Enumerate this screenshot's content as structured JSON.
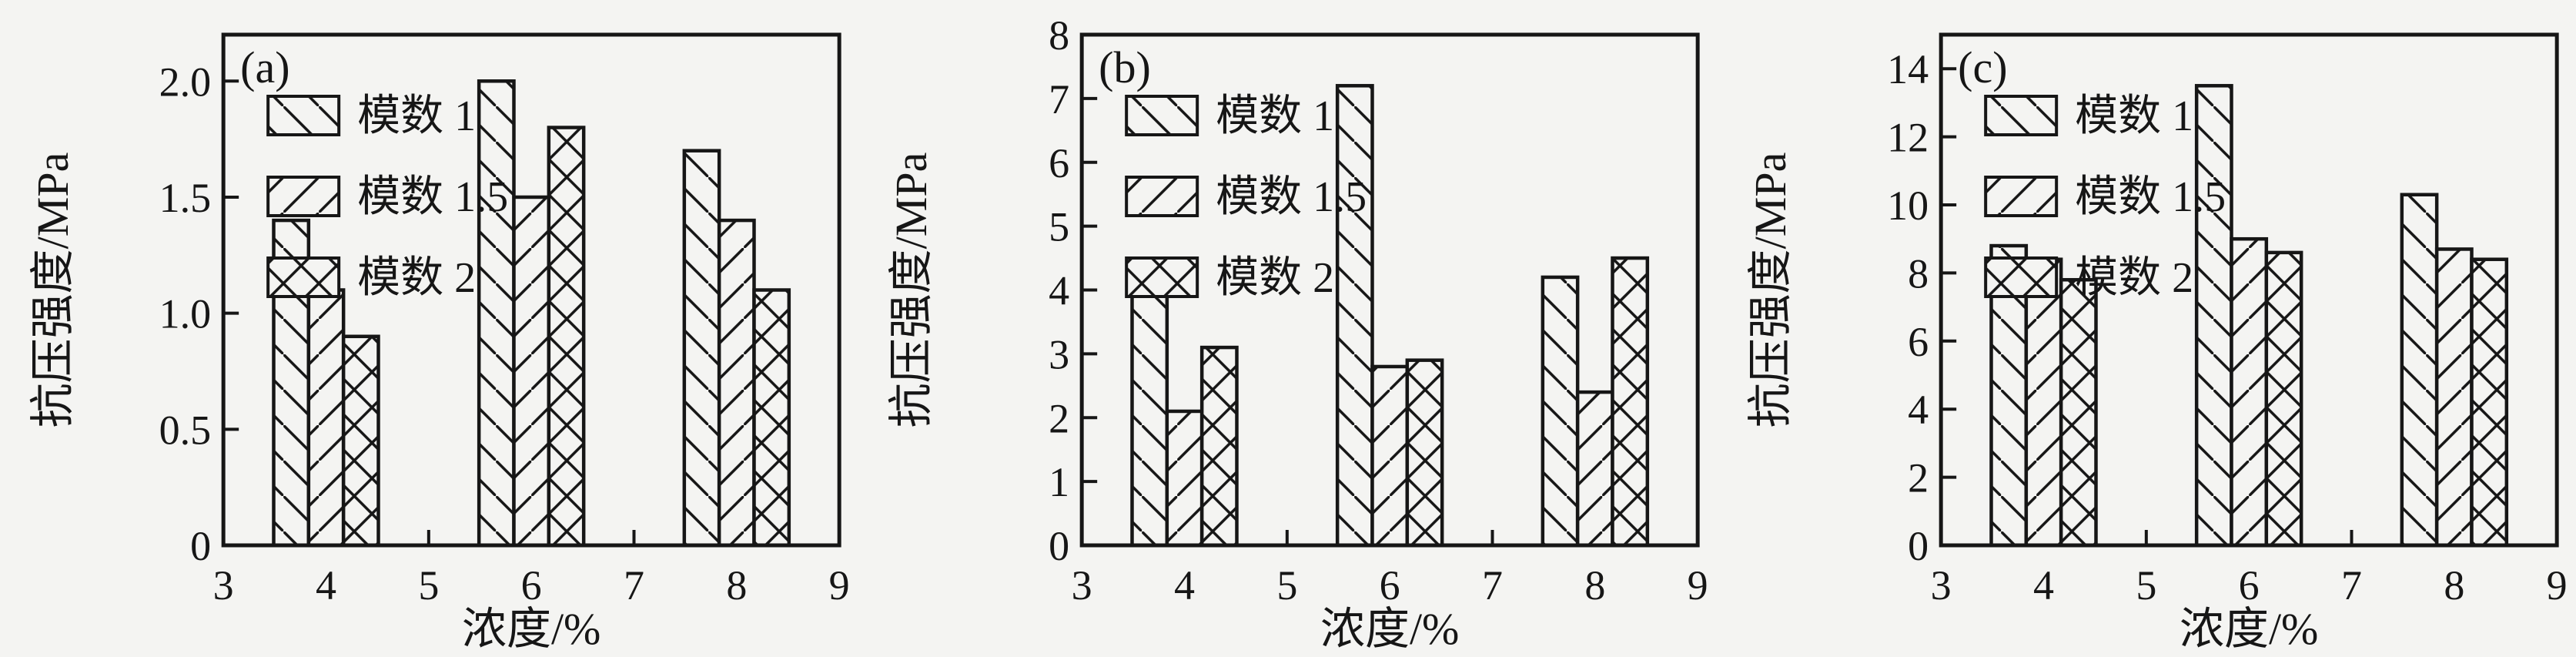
{
  "figure": {
    "background": "#f4f4f2",
    "line_color": "#161616",
    "text_color": "#161616",
    "xlabel": "浓度/%",
    "ylabel": "抗压强度/MPa",
    "legend_labels": [
      "模数 1",
      "模数 1.5",
      "模数 2"
    ],
    "hatch_styles": [
      "diag-down",
      "diag-up",
      "cross"
    ]
  },
  "chart_data": [
    {
      "type": "bar",
      "panel_label": "(a)",
      "xlabel": "浓度/%",
      "ylabel": "抗压强度/MPa",
      "categories": [
        4,
        6,
        8
      ],
      "series": [
        {
          "name": "模数 1",
          "hatch": "diag-down",
          "values": [
            1.4,
            2.0,
            1.7
          ]
        },
        {
          "name": "模数 1.5",
          "hatch": "diag-up",
          "values": [
            1.1,
            1.5,
            1.4
          ]
        },
        {
          "name": "模数 2",
          "hatch": "cross",
          "values": [
            0.9,
            1.8,
            1.1
          ]
        }
      ],
      "xlim": [
        3,
        9
      ],
      "ylim": [
        0,
        2.2
      ],
      "xticks": [
        3,
        4,
        5,
        6,
        7,
        8,
        9
      ],
      "xtick_labels": [
        "3",
        "4",
        "5",
        "6",
        "7",
        "8",
        "9"
      ],
      "yticks": [
        0,
        0.5,
        1.0,
        1.5,
        2.0
      ],
      "ytick_labels": [
        "0",
        "0.5",
        "1.0",
        "1.5",
        "2.0"
      ],
      "grid": false,
      "legend_position": "upper-left"
    },
    {
      "type": "bar",
      "panel_label": "(b)",
      "xlabel": "浓度/%",
      "ylabel": "抗压强度/MPa",
      "categories": [
        4,
        6,
        8
      ],
      "series": [
        {
          "name": "模数 1",
          "hatch": "diag-down",
          "values": [
            4.0,
            7.2,
            4.2
          ]
        },
        {
          "name": "模数 1.5",
          "hatch": "diag-up",
          "values": [
            2.1,
            2.8,
            2.4
          ]
        },
        {
          "name": "模数 2",
          "hatch": "cross",
          "values": [
            3.1,
            2.9,
            4.5
          ]
        }
      ],
      "xlim": [
        3,
        9
      ],
      "ylim": [
        0,
        8
      ],
      "xticks": [
        3,
        4,
        5,
        6,
        7,
        8,
        9
      ],
      "xtick_labels": [
        "3",
        "4",
        "5",
        "6",
        "7",
        "8",
        "9"
      ],
      "yticks": [
        0,
        1,
        2,
        3,
        4,
        5,
        6,
        7,
        8
      ],
      "ytick_labels": [
        "0",
        "1",
        "2",
        "3",
        "4",
        "5",
        "6",
        "7",
        "8"
      ],
      "grid": false,
      "legend_position": "upper-left"
    },
    {
      "type": "bar",
      "panel_label": "(c)",
      "xlabel": "浓度/%",
      "ylabel": "抗压强度/MPa",
      "categories": [
        4,
        6,
        8
      ],
      "series": [
        {
          "name": "模数 1",
          "hatch": "diag-down",
          "values": [
            8.8,
            13.5,
            10.3
          ]
        },
        {
          "name": "模数 1.5",
          "hatch": "diag-up",
          "values": [
            8.4,
            9.0,
            8.7
          ]
        },
        {
          "name": "模数 2",
          "hatch": "cross",
          "values": [
            7.8,
            8.6,
            8.4
          ]
        }
      ],
      "xlim": [
        3,
        9
      ],
      "ylim": [
        0,
        15
      ],
      "xticks": [
        3,
        4,
        5,
        6,
        7,
        8,
        9
      ],
      "xtick_labels": [
        "3",
        "4",
        "5",
        "6",
        "7",
        "8",
        "9"
      ],
      "yticks": [
        0,
        2,
        4,
        6,
        8,
        10,
        12,
        14
      ],
      "ytick_labels": [
        "0",
        "2",
        "4",
        "6",
        "8",
        "10",
        "12",
        "14"
      ],
      "grid": false,
      "legend_position": "upper-left"
    }
  ]
}
